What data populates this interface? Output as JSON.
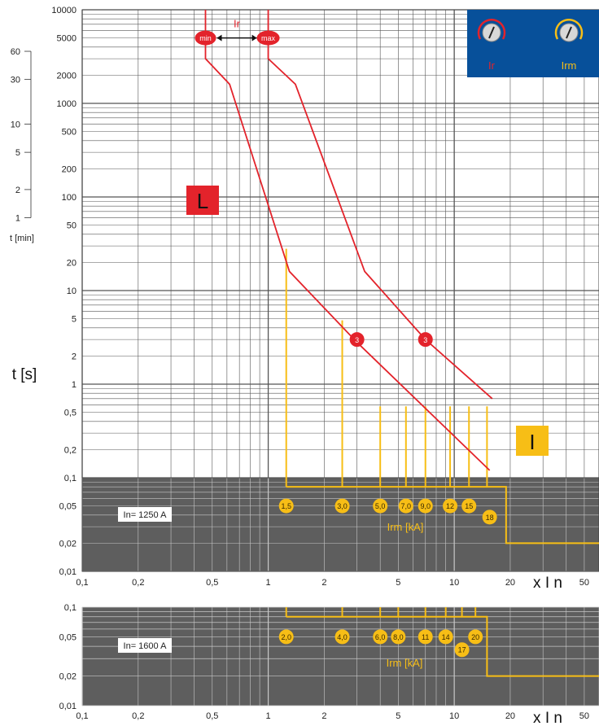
{
  "chart_data": [
    {
      "type": "line",
      "title": "",
      "xlabel": "x I n",
      "ylabel": "t [s]",
      "xscale": "log",
      "yscale": "log",
      "xlim": [
        0.1,
        60
      ],
      "ylim": [
        0.01,
        10000
      ],
      "x_ticks": [
        "0,1",
        "0,2",
        "0,5",
        "1",
        "2",
        "5",
        "10",
        "20",
        "50"
      ],
      "y_ticks": [
        {
          "value": 10000,
          "label": "10000"
        },
        {
          "value": 5000,
          "label": "5000"
        },
        {
          "value": 2000,
          "label": "2000"
        },
        {
          "value": 1000,
          "label": "1000"
        },
        {
          "value": 500,
          "label": "500"
        },
        {
          "value": 200,
          "label": "200"
        },
        {
          "value": 100,
          "label": "100"
        },
        {
          "value": 50,
          "label": "50"
        },
        {
          "value": 20,
          "label": "20"
        },
        {
          "value": 10,
          "label": "10"
        },
        {
          "value": 5,
          "label": "5"
        },
        {
          "value": 2,
          "label": "2"
        },
        {
          "value": 1,
          "label": "1"
        },
        {
          "value": 0.5,
          "label": "0,5"
        },
        {
          "value": 0.2,
          "label": "0,2"
        },
        {
          "value": 0.1,
          "label": "0,1"
        },
        {
          "value": 0.05,
          "label": "0,05"
        },
        {
          "value": 0.02,
          "label": "0,02"
        },
        {
          "value": 0.01,
          "label": "0,01"
        }
      ],
      "minute_scale": {
        "label": "t [min]",
        "ticks": [
          {
            "value": 60,
            "label": "60"
          },
          {
            "value": 30,
            "label": "30"
          },
          {
            "value": 10,
            "label": "10"
          },
          {
            "value": 5,
            "label": "5"
          },
          {
            "value": 2,
            "label": "2"
          },
          {
            "value": 1,
            "label": "1"
          }
        ]
      },
      "series": [
        {
          "role": "ir-min",
          "color": "#e3232b",
          "points": [
            [
              0.46,
              10000
            ],
            [
              0.46,
              3000
            ],
            [
              0.62,
              1600
            ],
            [
              1.3,
              16
            ],
            [
              3,
              2.8
            ],
            [
              15.5,
              0.12
            ]
          ]
        },
        {
          "role": "ir-max",
          "color": "#e3232b",
          "points": [
            [
              1,
              10000
            ],
            [
              1,
              3000
            ],
            [
              1.4,
              1600
            ],
            [
              3.3,
              16
            ],
            [
              7,
              3
            ],
            [
              16,
              0.7
            ]
          ]
        }
      ],
      "ir_range": {
        "label": "Ir",
        "min_label": "min",
        "max_label": "max",
        "t": 5000
      },
      "curve_markers": [
        {
          "label": "3",
          "x": 3,
          "t": 3
        },
        {
          "label": "3",
          "x": 7,
          "t": 3
        }
      ],
      "L_label": "L",
      "I_label": "I",
      "legend_panel": {
        "items": [
          "Ir",
          "Irm"
        ],
        "color": "#07509a"
      },
      "irm_verticals": [
        {
          "x": 1.25,
          "t_top": 28
        },
        {
          "x": 2.5,
          "t_top": 4.8
        },
        {
          "x": 4,
          "t_top": 0.58
        },
        {
          "x": 5.5,
          "t_top": 0.58
        },
        {
          "x": 7,
          "t_top": 0.58
        },
        {
          "x": 9.5,
          "t_top": 0.58
        },
        {
          "x": 12,
          "t_top": 0.58
        },
        {
          "x": 15,
          "t_top": 0.58
        }
      ],
      "irm_flat_segment": {
        "t": 0.08,
        "x_start": 1.25,
        "x_knee": 19,
        "t_bottom": 0.02,
        "x_end": 60
      },
      "in_label": "In= 1250 A",
      "irm_label": "Irm  [kA]",
      "irm_values_kA": [
        {
          "label": "1,5",
          "x": 1.25,
          "t": 0.05
        },
        {
          "label": "3,0",
          "x": 2.5,
          "t": 0.05
        },
        {
          "label": "5,0",
          "x": 4,
          "t": 0.05
        },
        {
          "label": "7,0",
          "x": 5.5,
          "t": 0.05
        },
        {
          "label": "9,0",
          "x": 7,
          "t": 0.05
        },
        {
          "label": "12",
          "x": 9.5,
          "t": 0.05
        },
        {
          "label": "15",
          "x": 12,
          "t": 0.05
        },
        {
          "label": "18",
          "x": 15.5,
          "t": 0.038
        }
      ]
    },
    {
      "type": "line",
      "xlabel": "x I n",
      "xscale": "log",
      "yscale": "log",
      "xlim": [
        0.1,
        60
      ],
      "ylim": [
        0.01,
        0.1
      ],
      "x_ticks": [
        "0,1",
        "0,2",
        "0,5",
        "1",
        "2",
        "5",
        "10",
        "20",
        "50"
      ],
      "y_ticks": [
        {
          "value": 0.1,
          "label": "0,1"
        },
        {
          "value": 0.05,
          "label": "0,05"
        },
        {
          "value": 0.02,
          "label": "0,02"
        },
        {
          "value": 0.01,
          "label": "0,01"
        }
      ],
      "irm_ticks": [
        1.25,
        2.5,
        4,
        5,
        7,
        9,
        11,
        13
      ],
      "irm_flat_segment": {
        "t": 0.08,
        "x_start": 1.25,
        "x_knee": 15,
        "t_bottom": 0.02,
        "x_end": 60
      },
      "in_label": "In= 1600 A",
      "irm_label": "Irm  [kA]",
      "irm_values_kA": [
        {
          "label": "2,0",
          "x": 1.25,
          "t": 0.05
        },
        {
          "label": "4,0",
          "x": 2.5,
          "t": 0.05
        },
        {
          "label": "6,0",
          "x": 4,
          "t": 0.05
        },
        {
          "label": "8,0",
          "x": 5,
          "t": 0.05
        },
        {
          "label": "11",
          "x": 7,
          "t": 0.05
        },
        {
          "label": "14",
          "x": 9,
          "t": 0.05
        },
        {
          "label": "20",
          "x": 13,
          "t": 0.05
        },
        {
          "label": "17",
          "x": 11,
          "t": 0.037
        }
      ]
    }
  ]
}
